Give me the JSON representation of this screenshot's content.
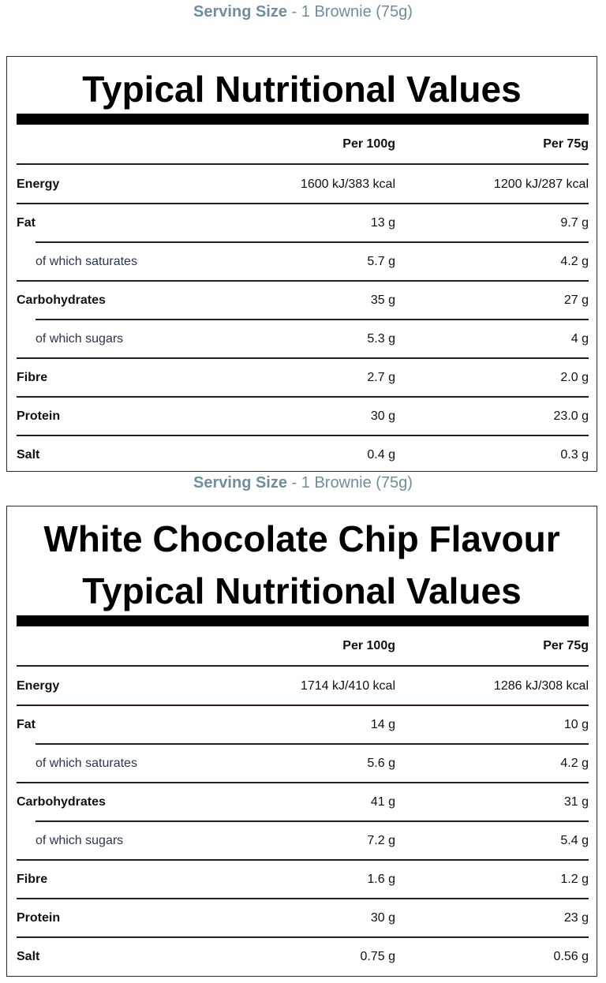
{
  "serving_label": "Serving Size",
  "serving_value": " - 1 Brownie (75g)",
  "columns": [
    "",
    "Per 100g",
    "Per 75g"
  ],
  "panels": [
    {
      "title_lines": [
        "Typical Nutritional Values"
      ],
      "rows": [
        {
          "name": "Energy",
          "per100": "1600 kJ/383 kcal",
          "perServing": "1200 kJ/287 kcal",
          "sub": false
        },
        {
          "name": "Fat",
          "per100": "13 g",
          "perServing": "9.7 g",
          "sub": false
        },
        {
          "name": "of which saturates",
          "per100": "5.7 g",
          "perServing": "4.2 g",
          "sub": true
        },
        {
          "name": "Carbohydrates",
          "per100": "35 g",
          "perServing": "27 g",
          "sub": false
        },
        {
          "name": "of which sugars",
          "per100": "5.3 g",
          "perServing": "4 g",
          "sub": true
        },
        {
          "name": "Fibre",
          "per100": "2.7 g",
          "perServing": "2.0 g",
          "sub": false
        },
        {
          "name": "Protein",
          "per100": "30 g",
          "perServing": "23.0 g",
          "sub": false
        },
        {
          "name": "Salt",
          "per100": "0.4 g",
          "perServing": "0.3 g",
          "sub": false
        }
      ]
    },
    {
      "title_lines": [
        "White Chocolate Chip Flavour",
        "Typical Nutritional Values"
      ],
      "rows": [
        {
          "name": "Energy",
          "per100": "1714 kJ/410 kcal",
          "perServing": "1286 kJ/308 kcal",
          "sub": false
        },
        {
          "name": "Fat",
          "per100": "14 g",
          "perServing": "10 g",
          "sub": false
        },
        {
          "name": "of which saturates",
          "per100": "5.6 g",
          "perServing": "4.2 g",
          "sub": true
        },
        {
          "name": "Carbohydrates",
          "per100": "41 g",
          "perServing": "31 g",
          "sub": false
        },
        {
          "name": "of which sugars",
          "per100": "7.2 g",
          "perServing": "5.4 g",
          "sub": true
        },
        {
          "name": "Fibre",
          "per100": "1.6 g",
          "perServing": "1.2 g",
          "sub": false
        },
        {
          "name": "Protein",
          "per100": "30 g",
          "perServing": "23 g",
          "sub": false
        },
        {
          "name": "Salt",
          "per100": "0.75 g",
          "perServing": "0.56 g",
          "sub": false
        }
      ]
    }
  ]
}
